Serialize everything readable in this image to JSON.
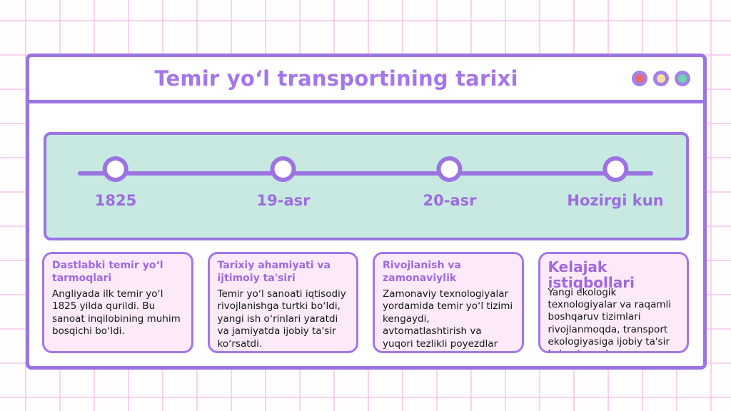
{
  "header": {
    "title": "Temir yoʻl transportining tarixi",
    "window_dots": [
      {
        "name": "red-dot",
        "color": "#e76c6c"
      },
      {
        "name": "yellow-dot",
        "color": "#f9df9b"
      },
      {
        "name": "teal-dot",
        "color": "#6ed6ab"
      }
    ]
  },
  "timeline": {
    "milestones": [
      {
        "label": "1825"
      },
      {
        "label": "19-asr"
      },
      {
        "label": "20-asr"
      },
      {
        "label": "Hozirgi kun"
      }
    ]
  },
  "cards": [
    {
      "title": "Dastlabki temir yoʻl tarmoqlari",
      "body": "Angliyada ilk temir yoʻl 1825 yilda qurildi. Bu sanoat inqilobining muhim bosqichi boʻldi."
    },
    {
      "title": "Tarixiy ahamiyati va ijtimoiy ta'siri",
      "body": "Temir yoʻl sanoati iqtisodiy rivojlanishga turtki boʻldi, yangi ish oʻrinlari yaratdi va jamiyatda ijobiy ta'sir koʻrsatdi."
    },
    {
      "title": "Rivojlanish va zamonaviylik",
      "body": "Zamonaviy texnologiyalar yordamida temir yoʻl tizimi kengaydi, avtomatlashtirish va yuqori tezlikli poyezdlar joriy etildi."
    },
    {
      "title": "Kelajak istiqbollari",
      "body": "Yangi ekologik texnologiyalar va raqamli boshqaruv tizimlari rivojlanmoqda, transport ekologiyasiga ijobiy ta'sir koʻrsatmoqda."
    }
  ],
  "colors": {
    "accent_purple": "#9b74e2",
    "title_purple": "#a476e8",
    "label_purple": "#9d6ce0",
    "timeline_bg": "#c7e9e1",
    "card_bg": "#fceaf8",
    "grid_pink": "#f5bde6",
    "panel_bg": "#ffffff"
  }
}
